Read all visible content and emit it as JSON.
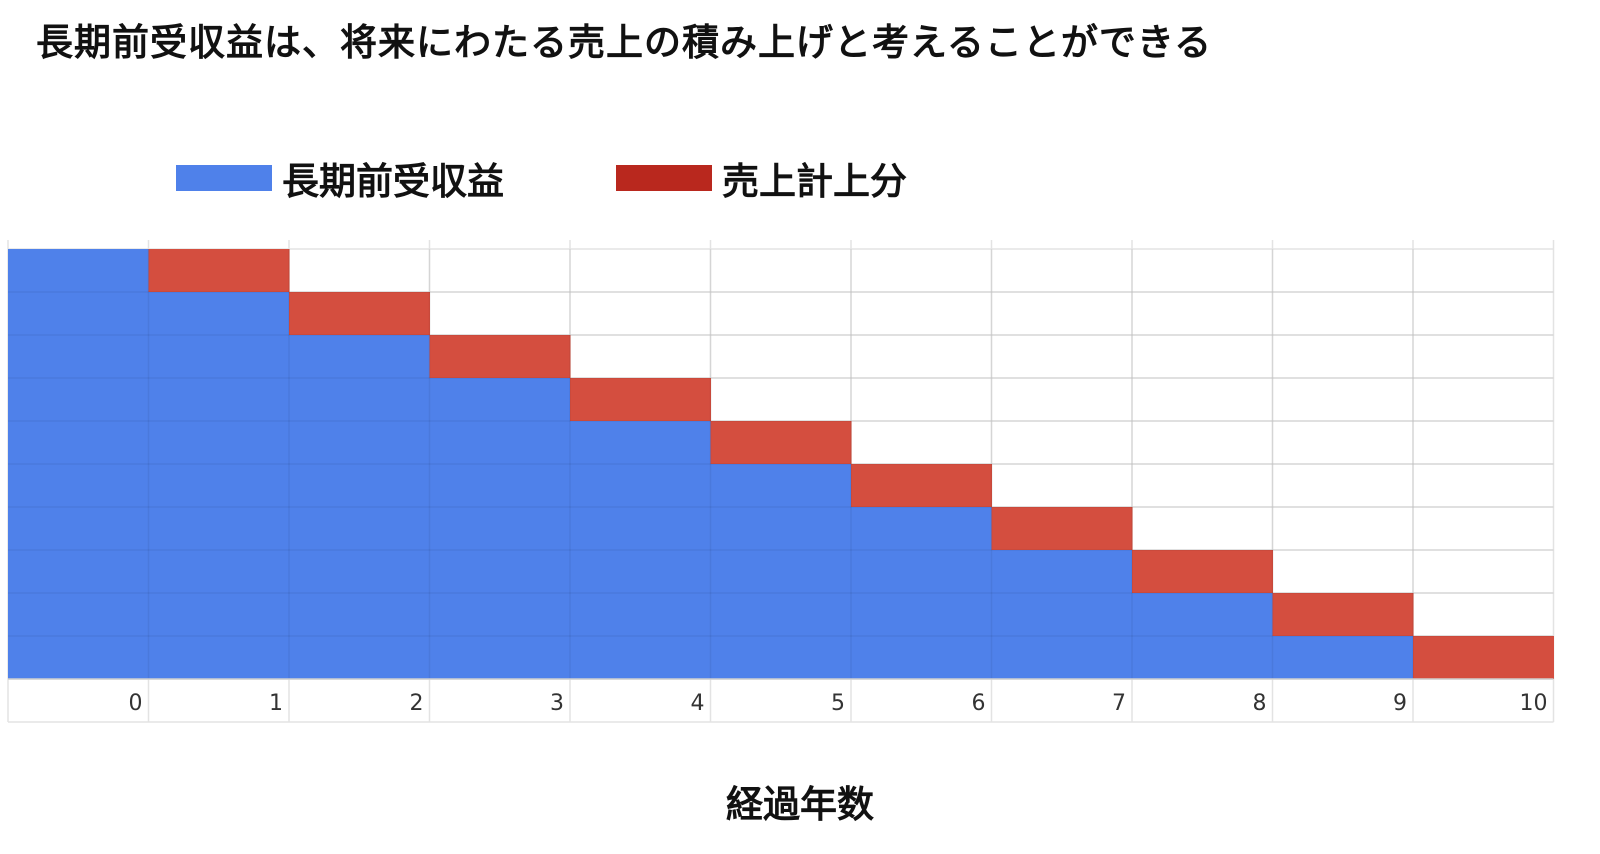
{
  "title": "長期前受収益は、将来にわたる売上の積み上げと考えることができる",
  "legend": [
    {
      "label": "長期前受収益",
      "color": "#4f81ea"
    },
    {
      "label": "売上計上分",
      "color": "#d44e3f"
    }
  ],
  "chart_data": {
    "type": "bar",
    "stacked": true,
    "categories": [
      "0",
      "1",
      "2",
      "3",
      "4",
      "5",
      "6",
      "7",
      "8",
      "9",
      "10"
    ],
    "series": [
      {
        "name": "長期前受収益",
        "color": "#4f81ea",
        "values": [
          10,
          9,
          8,
          7,
          6,
          5,
          4,
          3,
          2,
          1,
          0
        ]
      },
      {
        "name": "売上計上分",
        "color": "#d44e3f",
        "values": [
          0,
          1,
          1,
          1,
          1,
          1,
          1,
          1,
          1,
          1,
          1
        ]
      }
    ],
    "title": "長期前受収益は、将来にわたる売上の積み上げと考えることができる",
    "xlabel": "経過年数",
    "ylabel": "",
    "ylim": [
      0,
      10
    ],
    "grid": true,
    "legend_position": "top"
  }
}
